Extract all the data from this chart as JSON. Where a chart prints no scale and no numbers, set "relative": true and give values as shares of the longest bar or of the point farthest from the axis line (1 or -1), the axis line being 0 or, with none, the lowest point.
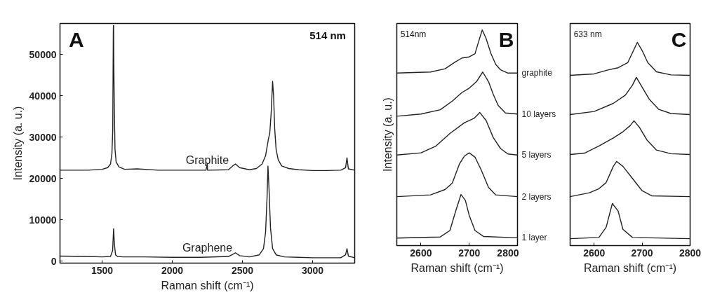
{
  "chart_data": [
    {
      "type": "line",
      "xlabel": "Raman shift (cm⁻¹)",
      "ylabel": "Intensity (a. u.)",
      "annotations": [
        "A",
        "514 nm"
      ],
      "xlim": [
        1200,
        3300
      ],
      "ylim": [
        -500,
        57500
      ],
      "xticks": [
        1500,
        2000,
        2500,
        3000
      ],
      "yticks": [
        0,
        10000,
        20000,
        30000,
        40000,
        50000
      ],
      "series": [
        {
          "name": "Graphite",
          "color": "#222222",
          "x": [
            1200,
            1400,
            1500,
            1540,
            1560,
            1570,
            1576,
            1579,
            1580,
            1581,
            1582,
            1583,
            1586,
            1592,
            1600,
            1620,
            1660,
            1750,
            1900,
            2100,
            2240,
            2250,
            2251,
            2260,
            2400,
            2430,
            2450,
            2480,
            2550,
            2600,
            2640,
            2665,
            2685,
            2695,
            2705,
            2715,
            2722,
            2730,
            2740,
            2755,
            2780,
            2830,
            2900,
            3000,
            3100,
            3200,
            3235,
            3245,
            3255,
            3300
          ],
          "values": [
            22000,
            22000,
            22200,
            22600,
            23500,
            26000,
            32000,
            50000,
            56000,
            57000,
            57000,
            50000,
            40000,
            27000,
            24000,
            22800,
            22200,
            22300,
            22000,
            22000,
            22000,
            23600,
            22000,
            22000,
            22100,
            23000,
            23500,
            22600,
            22100,
            22400,
            23500,
            25500,
            29500,
            31000,
            36000,
            43500,
            40000,
            32000,
            27000,
            24500,
            23000,
            22400,
            22100,
            21900,
            21900,
            22000,
            22600,
            25000,
            22300,
            22000
          ]
        },
        {
          "name": "Graphene",
          "color": "#222222",
          "x": [
            1200,
            1400,
            1500,
            1560,
            1575,
            1582,
            1588,
            1596,
            1610,
            1650,
            1800,
            2000,
            2200,
            2400,
            2430,
            2450,
            2480,
            2550,
            2620,
            2650,
            2665,
            2675,
            2682,
            2690,
            2700,
            2715,
            2740,
            2800,
            2900,
            3000,
            3100,
            3200,
            3235,
            3245,
            3255,
            3300
          ],
          "values": [
            1200,
            1100,
            1000,
            1100,
            2500,
            7800,
            4000,
            1500,
            1100,
            1000,
            1000,
            900,
            900,
            1100,
            1600,
            2000,
            1300,
            1000,
            1500,
            3000,
            7000,
            15000,
            23000,
            17000,
            8000,
            3000,
            1500,
            1000,
            900,
            800,
            800,
            800,
            1500,
            3000,
            1200,
            800
          ]
        }
      ]
    },
    {
      "type": "line",
      "relative": true,
      "xlabel": "Raman shift (cm⁻¹)",
      "ylabel": "Intensity (a. u.)",
      "annotations": [
        "514nm",
        "B"
      ],
      "xlim": [
        2550,
        2800
      ],
      "xticks": [
        2600,
        2700,
        2800
      ],
      "tick_labels": "x",
      "series": [
        {
          "name": "graphite",
          "color": "#222222",
          "x": [
            2550,
            2620,
            2650,
            2670,
            2685,
            2700,
            2712,
            2720,
            2727,
            2735,
            2745,
            2755,
            2765,
            2780,
            2800
          ],
          "values": [
            0.8,
            0.805,
            0.82,
            0.85,
            0.87,
            0.875,
            0.89,
            0.95,
            1.0,
            0.96,
            0.89,
            0.84,
            0.815,
            0.8,
            0.8
          ]
        },
        {
          "name": "10 layers",
          "color": "#222222",
          "x": [
            2550,
            2600,
            2640,
            2665,
            2685,
            2700,
            2715,
            2728,
            2740,
            2750,
            2760,
            2775,
            2800
          ],
          "values": [
            0.6,
            0.61,
            0.63,
            0.67,
            0.71,
            0.73,
            0.76,
            0.805,
            0.76,
            0.7,
            0.65,
            0.615,
            0.61
          ]
        },
        {
          "name": "5 layers",
          "color": "#222222",
          "x": [
            2550,
            2600,
            2630,
            2660,
            2690,
            2710,
            2722,
            2735,
            2750,
            2765,
            2780,
            2800
          ],
          "values": [
            0.42,
            0.43,
            0.46,
            0.52,
            0.57,
            0.59,
            0.617,
            0.58,
            0.5,
            0.45,
            0.425,
            0.42
          ]
        },
        {
          "name": "2 layers",
          "color": "#222222",
          "x": [
            2550,
            2620,
            2650,
            2665,
            2680,
            2690,
            2700,
            2712,
            2725,
            2740,
            2755,
            2800
          ],
          "values": [
            0.227,
            0.235,
            0.26,
            0.29,
            0.38,
            0.415,
            0.43,
            0.41,
            0.35,
            0.27,
            0.235,
            0.227
          ]
        },
        {
          "name": "1 layer",
          "color": "#222222",
          "x": [
            2550,
            2640,
            2660,
            2672,
            2683,
            2692,
            2700,
            2712,
            2730,
            2800
          ],
          "values": [
            0.035,
            0.04,
            0.07,
            0.16,
            0.237,
            0.21,
            0.14,
            0.07,
            0.042,
            0.036
          ]
        }
      ]
    },
    {
      "type": "line",
      "relative": true,
      "xlabel": "Raman shift (cm⁻¹)",
      "annotations": [
        "633 nm",
        "C"
      ],
      "xlim": [
        2550,
        2800
      ],
      "xticks": [
        2600,
        2700,
        2800
      ],
      "tick_labels": "x",
      "series": [
        {
          "color": "#222222",
          "x": [
            2550,
            2600,
            2630,
            2650,
            2670,
            2680,
            2690,
            2700,
            2712,
            2730,
            2760,
            2800
          ],
          "values": [
            0.838,
            0.845,
            0.865,
            0.875,
            0.9,
            0.95,
            1.0,
            0.96,
            0.9,
            0.855,
            0.84,
            0.838
          ]
        },
        {
          "color": "#222222",
          "x": [
            2550,
            2600,
            2640,
            2665,
            2680,
            2688,
            2700,
            2715,
            2735,
            2760,
            2800
          ],
          "values": [
            0.645,
            0.66,
            0.7,
            0.74,
            0.79,
            0.828,
            0.78,
            0.72,
            0.67,
            0.65,
            0.645
          ]
        },
        {
          "color": "#222222",
          "x": [
            2550,
            2580,
            2610,
            2640,
            2660,
            2675,
            2683,
            2695,
            2710,
            2730,
            2760,
            2800
          ],
          "values": [
            0.448,
            0.455,
            0.49,
            0.53,
            0.56,
            0.59,
            0.614,
            0.58,
            0.52,
            0.47,
            0.452,
            0.448
          ]
        },
        {
          "color": "#222222",
          "x": [
            2550,
            2590,
            2610,
            2625,
            2640,
            2647,
            2660,
            2680,
            2700,
            2720,
            2800
          ],
          "values": [
            0.241,
            0.26,
            0.28,
            0.31,
            0.39,
            0.414,
            0.39,
            0.33,
            0.27,
            0.245,
            0.241
          ]
        },
        {
          "color": "#222222",
          "x": [
            2550,
            2610,
            2625,
            2638,
            2650,
            2660,
            2680,
            2800
          ],
          "values": [
            0.034,
            0.04,
            0.09,
            0.207,
            0.17,
            0.08,
            0.04,
            0.034
          ]
        }
      ]
    }
  ]
}
